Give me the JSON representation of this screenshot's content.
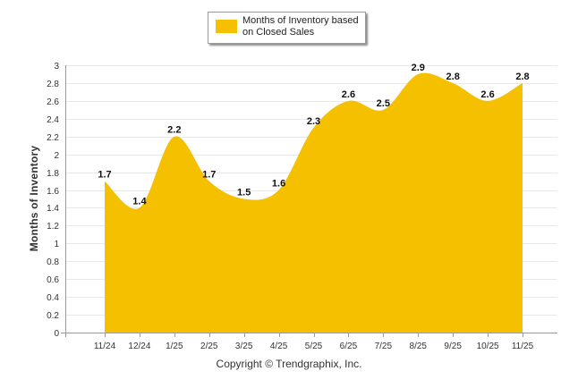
{
  "chart_data": {
    "type": "area",
    "title": "",
    "xlabel": "",
    "ylabel": "Months of Inventory",
    "ylim": [
      0,
      3
    ],
    "ytick_step": 0.2,
    "grid": true,
    "legend_position": "top-center",
    "categories": [
      "11/24",
      "12/24",
      "1/25",
      "2/25",
      "3/25",
      "4/25",
      "5/25",
      "6/25",
      "7/25",
      "8/25",
      "9/25",
      "10/25",
      "11/25"
    ],
    "series": [
      {
        "name": "Months of Inventory based on Closed Sales",
        "color": "#f5c000",
        "values": [
          1.7,
          1.4,
          2.2,
          1.7,
          1.5,
          1.6,
          2.3,
          2.6,
          2.5,
          2.9,
          2.8,
          2.6,
          2.8
        ],
        "labels": [
          "1.7",
          "1.4",
          "2.2",
          "1.7",
          "1.5",
          "1.6",
          "2.3",
          "2.6",
          "2.5",
          "2.9",
          "2.8",
          "2.6",
          "2.8"
        ]
      }
    ]
  },
  "legend": {
    "label": "Months of Inventory based on Closed Sales"
  },
  "footer": {
    "copyright": "Copyright © Trendgraphix, Inc."
  }
}
